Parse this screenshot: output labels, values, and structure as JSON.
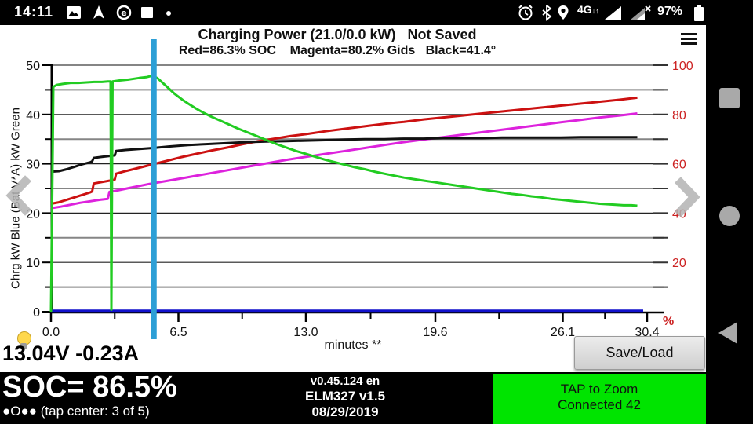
{
  "status_bar": {
    "time": "14:11",
    "battery_pct": "97%",
    "left_icons": [
      "image-icon",
      "gps-arrow-icon",
      "data-circle-icon",
      "screen-square-icon",
      "dot-icon"
    ],
    "right_icons": [
      "alarm-icon",
      "bluetooth-icon",
      "location-icon",
      "4g-icon",
      "signal-icon",
      "signal-nosim-icon",
      "battery-icon"
    ],
    "network_label": "4G"
  },
  "header": {
    "title": "Charging Power (21.0/0.0 kW)   Not Saved",
    "legend": "Red=86.3% SOC    Magenta=80.2% Gids   Black=41.4°",
    "menu_icon": "hamburger-menu"
  },
  "chart_data": {
    "type": "line",
    "title": "Charging Power (21.0/0.0 kW)",
    "xlabel": "minutes **",
    "ylabel_left": "Chrg kW Blue  (Bat V*A) kW Green",
    "ylabel_right_unit": "%",
    "x_ticks": [
      {
        "m": 0.0,
        "label": "0.0"
      },
      {
        "m": 6.5,
        "label": "6.5"
      },
      {
        "m": 13.0,
        "label": "13.0"
      },
      {
        "m": 19.6,
        "label": "19.6"
      },
      {
        "m": 26.1,
        "label": "26.1"
      },
      {
        "m": 30.4,
        "label": "30.4"
      }
    ],
    "y_left": {
      "min": 0,
      "max": 50,
      "label_step": 10,
      "tick_step": 5
    },
    "y_right": {
      "min": 0,
      "max": 100,
      "label_step": 20,
      "tick_step": 10
    },
    "grid": {
      "minor_color": "#858585",
      "major_color": "#222222"
    },
    "cursor": {
      "m": 5.25,
      "color": "#2d9fd6"
    },
    "colors": {
      "axis": "#000000",
      "right_labels": "#cc2222"
    },
    "series": [
      {
        "name": "blue-charge-kw",
        "color": "#1111cc",
        "width": 3,
        "points": [
          [
            0,
            0.2
          ],
          [
            30.2,
            0.2
          ]
        ]
      },
      {
        "name": "magenta-gids",
        "color": "#dd22dd",
        "width": 3,
        "points": [
          [
            0,
            21.0
          ],
          [
            0.5,
            21.3
          ],
          [
            1.0,
            21.7
          ],
          [
            1.5,
            22.1
          ],
          [
            2.0,
            22.4
          ],
          [
            2.5,
            22.7
          ],
          [
            2.9,
            22.9
          ],
          [
            2.98,
            24.3
          ],
          [
            3.4,
            24.6
          ],
          [
            4.0,
            25.1
          ],
          [
            5.0,
            25.9
          ],
          [
            6.0,
            26.6
          ],
          [
            7.0,
            27.3
          ],
          [
            8.0,
            28.0
          ],
          [
            9.0,
            28.7
          ],
          [
            10.0,
            29.4
          ],
          [
            11.0,
            30.1
          ],
          [
            12.0,
            30.8
          ],
          [
            13.0,
            31.4
          ],
          [
            14.0,
            32.0
          ],
          [
            15.0,
            32.6
          ],
          [
            16.0,
            33.2
          ],
          [
            17.0,
            33.8
          ],
          [
            18.0,
            34.4
          ],
          [
            19.0,
            34.9
          ],
          [
            20.0,
            35.4
          ],
          [
            21.0,
            35.9
          ],
          [
            22.0,
            36.4
          ],
          [
            23.0,
            36.9
          ],
          [
            24.0,
            37.4
          ],
          [
            25.0,
            37.9
          ],
          [
            26.0,
            38.4
          ],
          [
            27.0,
            38.9
          ],
          [
            28.0,
            39.4
          ],
          [
            29.0,
            39.8
          ],
          [
            29.9,
            40.2
          ]
        ]
      },
      {
        "name": "red-soc",
        "color": "#cc1111",
        "width": 3,
        "points": [
          [
            0,
            21.9
          ],
          [
            0.4,
            22.2
          ],
          [
            0.8,
            22.7
          ],
          [
            1.2,
            23.2
          ],
          [
            1.6,
            23.7
          ],
          [
            2.0,
            24.2
          ],
          [
            2.1,
            24.4
          ],
          [
            2.18,
            26.0
          ],
          [
            2.6,
            26.3
          ],
          [
            3.0,
            26.6
          ],
          [
            3.25,
            26.8
          ],
          [
            3.32,
            28.0
          ],
          [
            3.7,
            28.4
          ],
          [
            4.2,
            28.9
          ],
          [
            5.0,
            29.7
          ],
          [
            5.8,
            30.5
          ],
          [
            6.6,
            31.3
          ],
          [
            7.4,
            32.0
          ],
          [
            8.2,
            32.7
          ],
          [
            9.0,
            33.3
          ],
          [
            9.8,
            34.0
          ],
          [
            10.6,
            34.6
          ],
          [
            11.4,
            35.1
          ],
          [
            12.2,
            35.6
          ],
          [
            13.0,
            36.0
          ],
          [
            14.0,
            36.6
          ],
          [
            15.0,
            37.1
          ],
          [
            16.0,
            37.6
          ],
          [
            17.0,
            38.1
          ],
          [
            18.0,
            38.5
          ],
          [
            19.0,
            39.0
          ],
          [
            20.0,
            39.4
          ],
          [
            21.0,
            39.8
          ],
          [
            22.0,
            40.2
          ],
          [
            23.0,
            40.6
          ],
          [
            24.0,
            41.0
          ],
          [
            25.0,
            41.4
          ],
          [
            26.0,
            41.8
          ],
          [
            27.0,
            42.2
          ],
          [
            28.0,
            42.6
          ],
          [
            29.0,
            43.0
          ],
          [
            29.9,
            43.4
          ]
        ]
      },
      {
        "name": "black-temp",
        "color": "#111111",
        "width": 3,
        "points": [
          [
            0,
            28.4
          ],
          [
            0.4,
            28.5
          ],
          [
            0.8,
            28.9
          ],
          [
            1.2,
            29.4
          ],
          [
            1.6,
            29.9
          ],
          [
            2.0,
            30.3
          ],
          [
            2.1,
            30.5
          ],
          [
            2.18,
            31.2
          ],
          [
            2.6,
            31.4
          ],
          [
            3.0,
            31.6
          ],
          [
            3.25,
            31.7
          ],
          [
            3.32,
            32.6
          ],
          [
            3.8,
            32.8
          ],
          [
            4.5,
            33.0
          ],
          [
            5.2,
            33.2
          ],
          [
            6.0,
            33.5
          ],
          [
            7.0,
            33.8
          ],
          [
            8.0,
            34.0
          ],
          [
            9.0,
            34.2
          ],
          [
            10.0,
            34.4
          ],
          [
            11.0,
            34.5
          ],
          [
            12.0,
            34.6
          ],
          [
            13.0,
            34.7
          ],
          [
            14.0,
            34.8
          ],
          [
            15.0,
            34.9
          ],
          [
            16.0,
            35.0
          ],
          [
            17.0,
            35.0
          ],
          [
            18.0,
            35.1
          ],
          [
            19.0,
            35.1
          ],
          [
            20.0,
            35.2
          ],
          [
            21.0,
            35.2
          ],
          [
            22.0,
            35.2
          ],
          [
            23.0,
            35.3
          ],
          [
            24.0,
            35.3
          ],
          [
            25.0,
            35.3
          ],
          [
            26.0,
            35.3
          ],
          [
            27.0,
            35.4
          ],
          [
            28.0,
            35.4
          ],
          [
            29.0,
            35.4
          ],
          [
            29.9,
            35.4
          ]
        ]
      },
      {
        "name": "green-bat-kw",
        "color": "#22cc22",
        "width": 3,
        "points": [
          [
            0,
            0
          ],
          [
            0.08,
            30
          ],
          [
            0.12,
            45.6
          ],
          [
            0.3,
            46.0
          ],
          [
            0.6,
            46.2
          ],
          [
            1.0,
            46.4
          ],
          [
            1.4,
            46.4
          ],
          [
            1.8,
            46.5
          ],
          [
            2.2,
            46.6
          ],
          [
            2.6,
            46.6
          ],
          [
            2.9,
            46.7
          ],
          [
            3.04,
            46.7
          ],
          [
            3.08,
            0.4
          ],
          [
            3.14,
            46.7
          ],
          [
            3.5,
            46.9
          ],
          [
            4.0,
            47.1
          ],
          [
            4.5,
            47.4
          ],
          [
            4.9,
            47.6
          ],
          [
            5.2,
            47.9
          ],
          [
            5.45,
            47.3
          ],
          [
            5.7,
            46.4
          ],
          [
            6.0,
            45.3
          ],
          [
            6.3,
            44.2
          ],
          [
            6.7,
            43.0
          ],
          [
            7.0,
            42.2
          ],
          [
            7.4,
            41.2
          ],
          [
            7.8,
            40.3
          ],
          [
            8.2,
            39.5
          ],
          [
            8.6,
            38.8
          ],
          [
            9.0,
            38.1
          ],
          [
            9.5,
            37.2
          ],
          [
            10.0,
            36.4
          ],
          [
            10.5,
            35.6
          ],
          [
            11.0,
            34.8
          ],
          [
            11.5,
            34.0
          ],
          [
            12.0,
            33.3
          ],
          [
            12.5,
            32.6
          ],
          [
            13.0,
            32.0
          ],
          [
            13.5,
            31.4
          ],
          [
            14.0,
            30.8
          ],
          [
            14.5,
            30.3
          ],
          [
            15.0,
            29.8
          ],
          [
            15.5,
            29.3
          ],
          [
            16.0,
            28.9
          ],
          [
            16.5,
            28.4
          ],
          [
            17.0,
            28.0
          ],
          [
            17.5,
            27.6
          ],
          [
            18.0,
            27.2
          ],
          [
            18.5,
            26.9
          ],
          [
            19.0,
            26.6
          ],
          [
            19.5,
            26.3
          ],
          [
            20.0,
            26.0
          ],
          [
            20.5,
            25.7
          ],
          [
            21.0,
            25.4
          ],
          [
            21.5,
            25.1
          ],
          [
            22.0,
            24.8
          ],
          [
            22.5,
            24.5
          ],
          [
            23.0,
            24.2
          ],
          [
            23.5,
            23.9
          ],
          [
            24.0,
            23.7
          ],
          [
            24.5,
            23.4
          ],
          [
            25.0,
            23.2
          ],
          [
            25.5,
            22.9
          ],
          [
            26.0,
            22.7
          ],
          [
            26.5,
            22.5
          ],
          [
            27.0,
            22.3
          ],
          [
            27.5,
            22.1
          ],
          [
            28.0,
            21.9
          ],
          [
            28.4,
            21.8
          ],
          [
            28.8,
            21.7
          ],
          [
            29.2,
            21.6
          ],
          [
            29.6,
            21.6
          ],
          [
            29.9,
            21.5
          ]
        ]
      }
    ]
  },
  "footer": {
    "voltage_current": "13.04V -0.23A",
    "soc": "SOC= 86.5%",
    "pager": "●O●● (tap center: 3 of 5)",
    "version": "v0.45.124 en",
    "adapter": "ELM327 v1.5",
    "date": "08/29/2019",
    "zoom_line1": "TAP to Zoom",
    "zoom_line2": "Connected 42",
    "save_load": "Save/Load",
    "zoom_box_color": "#00e400"
  }
}
